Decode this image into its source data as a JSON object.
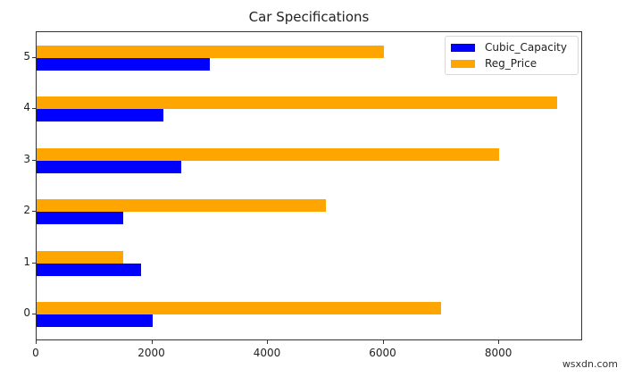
{
  "chart_data": {
    "type": "bar",
    "orientation": "horizontal",
    "title": "Car Specifications",
    "xlabel": "",
    "ylabel": "",
    "categories": [
      "0",
      "1",
      "2",
      "3",
      "4",
      "5"
    ],
    "series": [
      {
        "name": "Cubic_Capacity",
        "color": "#0000ff",
        "values": [
          2000,
          1800,
          1500,
          2500,
          2200,
          3000
        ]
      },
      {
        "name": "Reg_Price",
        "color": "#ffa500",
        "values": [
          7000,
          1500,
          5000,
          8000,
          9000,
          6000
        ]
      }
    ],
    "xlim": [
      0,
      9450
    ],
    "xticks": [
      "0",
      "2000",
      "4000",
      "6000",
      "8000"
    ],
    "yticks": [
      "0",
      "1",
      "2",
      "3",
      "4",
      "5"
    ],
    "grid": false,
    "legend_position": "upper right"
  },
  "legend": {
    "items": [
      {
        "label": "Cubic_Capacity",
        "color": "#0000ff"
      },
      {
        "label": "Reg_Price",
        "color": "#ffa500"
      }
    ]
  },
  "watermark": "wsxdn.com"
}
